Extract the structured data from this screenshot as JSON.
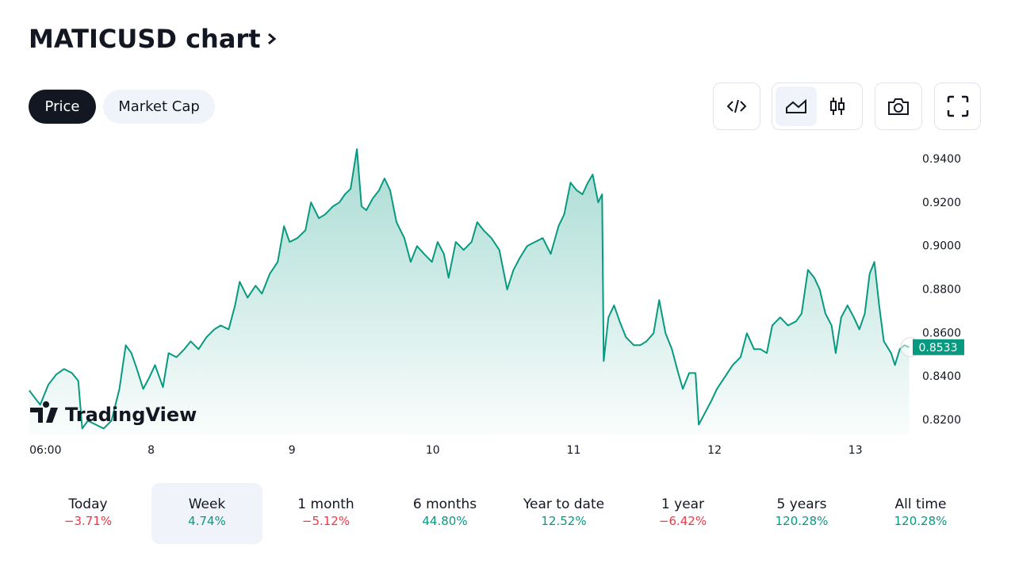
{
  "header": {
    "title": "MATICUSD chart"
  },
  "tabs": [
    "Price",
    "Market Cap"
  ],
  "watermark": "TradingView",
  "chart_data": {
    "type": "line",
    "color": "#089981",
    "x": [
      7.135,
      7.169,
      7.213,
      7.27,
      7.326,
      7.382,
      7.438,
      7.483,
      7.511,
      7.551,
      7.607,
      7.663,
      7.719,
      7.775,
      7.82,
      7.86,
      7.899,
      7.944,
      7.989,
      8.028,
      8.084,
      8.124,
      8.18,
      8.236,
      8.281,
      8.337,
      8.393,
      8.449,
      8.494,
      8.551,
      8.596,
      8.629,
      8.685,
      8.742,
      8.787,
      8.843,
      8.899,
      8.944,
      8.983,
      9.039,
      9.096,
      9.135,
      9.191,
      9.236,
      9.292,
      9.337,
      9.376,
      9.416,
      9.461,
      9.494,
      9.528,
      9.573,
      9.618,
      9.657,
      9.697,
      9.742,
      9.798,
      9.843,
      9.888,
      9.938,
      9.994,
      10.034,
      10.079,
      10.112,
      10.163,
      10.219,
      10.275,
      10.315,
      10.36,
      10.416,
      10.472,
      10.528,
      10.573,
      10.618,
      10.669,
      10.725,
      10.781,
      10.837,
      10.893,
      10.933,
      10.978,
      11.022,
      11.062,
      11.101,
      11.135,
      11.174,
      11.202,
      11.213,
      11.247,
      11.287,
      11.326,
      11.371,
      11.427,
      11.472,
      11.517,
      11.567,
      11.607,
      11.652,
      11.697,
      11.742,
      11.775,
      11.82,
      11.865,
      11.888,
      11.933,
      11.978,
      12.017,
      12.073,
      12.129,
      12.185,
      12.23,
      12.281,
      12.326,
      12.371,
      12.41,
      12.466,
      12.522,
      12.579,
      12.618,
      12.663,
      12.708,
      12.747,
      12.787,
      12.831,
      12.86,
      12.899,
      12.944,
      12.989,
      13.028,
      13.067,
      13.101,
      13.135,
      13.169,
      13.202,
      13.253,
      13.281,
      13.315,
      13.348,
      13.382
    ],
    "values": [
      0.8334,
      0.8305,
      0.8268,
      0.836,
      0.8407,
      0.8433,
      0.8414,
      0.8378,
      0.8159,
      0.8195,
      0.8177,
      0.8159,
      0.8195,
      0.8341,
      0.8542,
      0.8506,
      0.8433,
      0.8341,
      0.8396,
      0.8451,
      0.8349,
      0.8506,
      0.8487,
      0.8524,
      0.856,
      0.8524,
      0.8579,
      0.8615,
      0.8633,
      0.8615,
      0.8725,
      0.8834,
      0.8761,
      0.8816,
      0.8779,
      0.8871,
      0.8925,
      0.909,
      0.9017,
      0.9035,
      0.9071,
      0.9199,
      0.9126,
      0.9144,
      0.9181,
      0.9199,
      0.9236,
      0.9261,
      0.9444,
      0.9181,
      0.9163,
      0.9217,
      0.9254,
      0.9309,
      0.9254,
      0.9108,
      0.9035,
      0.8925,
      0.8998,
      0.8962,
      0.8925,
      0.9017,
      0.8962,
      0.8852,
      0.9017,
      0.898,
      0.9017,
      0.9108,
      0.9071,
      0.9035,
      0.898,
      0.8798,
      0.8889,
      0.8944,
      0.8998,
      0.9017,
      0.9035,
      0.8962,
      0.909,
      0.9144,
      0.929,
      0.9254,
      0.9236,
      0.929,
      0.9327,
      0.9199,
      0.9236,
      0.8469,
      0.867,
      0.8725,
      0.8652,
      0.8579,
      0.8542,
      0.8542,
      0.856,
      0.8597,
      0.875,
      0.8597,
      0.8524,
      0.8414,
      0.8341,
      0.8414,
      0.8414,
      0.8177,
      0.8232,
      0.8287,
      0.8341,
      0.8396,
      0.8451,
      0.8487,
      0.8597,
      0.8524,
      0.8524,
      0.8506,
      0.8633,
      0.867,
      0.8633,
      0.8652,
      0.8688,
      0.8889,
      0.8852,
      0.8798,
      0.8688,
      0.8633,
      0.8506,
      0.867,
      0.8725,
      0.867,
      0.8615,
      0.8688,
      0.8871,
      0.8925,
      0.8725,
      0.856,
      0.8506,
      0.8451,
      0.8524,
      0.8542,
      0.8533
    ],
    "last_price": 0.8533,
    "xlim": [
      7.13,
      13.39
    ],
    "xticks": [
      {
        "value": 7.25,
        "label": "06:00"
      },
      8,
      9,
      10,
      11,
      12,
      13
    ],
    "ylim": [
      0.8131,
      0.9455
    ],
    "yticks": [
      {
        "value": 0.82,
        "label": "0.8200"
      },
      {
        "value": 0.84,
        "label": "0.8400"
      },
      {
        "value": 0.86,
        "label": "0.8600"
      },
      {
        "value": 0.88,
        "label": "0.8800"
      },
      {
        "value": 0.9,
        "label": "0.9000"
      },
      {
        "value": 0.92,
        "label": "0.9200"
      },
      {
        "value": 0.94,
        "label": "0.9400"
      }
    ]
  },
  "periods": [
    {
      "label": "Today",
      "change": "−3.71%"
    },
    {
      "label": "Week",
      "change": "4.74%"
    },
    {
      "label": "1 month",
      "change": "−5.12%"
    },
    {
      "label": "6 months",
      "change": "44.80%"
    },
    {
      "label": "Year to date",
      "change": "12.52%"
    },
    {
      "label": "1 year",
      "change": "−6.42%"
    },
    {
      "label": "5 years",
      "change": "120.28%"
    },
    {
      "label": "All time",
      "change": "120.28%"
    }
  ],
  "selected_period": "Week"
}
